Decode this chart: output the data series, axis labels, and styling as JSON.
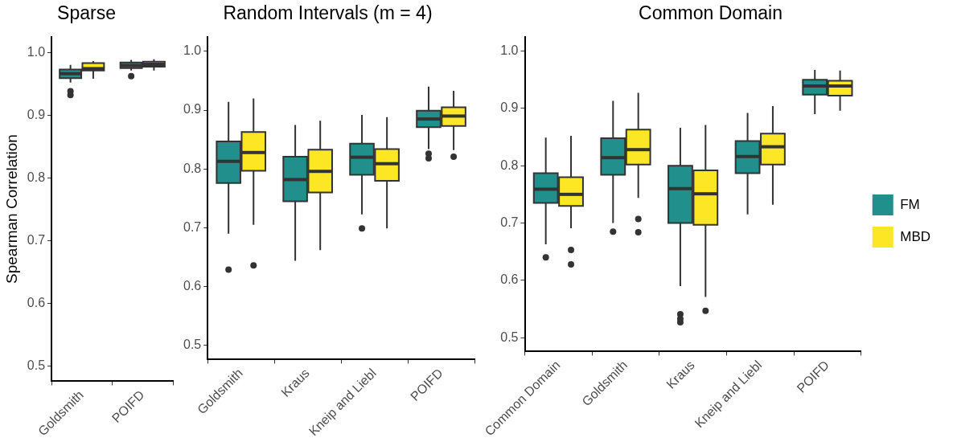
{
  "chart_data": [
    {
      "type": "box",
      "title": "Sparse",
      "ylabel": "Spearman Correlation",
      "categories": [
        "Goldsmith",
        "POIFD"
      ],
      "ylim": [
        0.476,
        1.025
      ],
      "yticks": [
        {
          "value": 0.5,
          "label": "0.5"
        },
        {
          "value": 0.6,
          "label": "0.6"
        },
        {
          "value": 0.7,
          "label": "0.7"
        },
        {
          "value": 0.8,
          "label": "0.8"
        },
        {
          "value": 0.9,
          "label": "0.9"
        },
        {
          "value": 1.0,
          "label": "1.0"
        }
      ],
      "legend": false,
      "series": [
        {
          "color": "#21908c",
          "boxes": [
            {
              "low": 0.952,
              "q1": 0.959,
              "median": 0.966,
              "q3": 0.9725,
              "high": 0.98,
              "outliers": [
                0.938,
                0.932
              ]
            },
            {
              "low": 0.971,
              "q1": 0.975,
              "median": 0.979,
              "q3": 0.984,
              "high": 0.988,
              "outliers": [
                0.962
              ]
            }
          ]
        },
        {
          "color": "#fde725",
          "boxes": [
            {
              "low": 0.958,
              "q1": 0.971,
              "median": 0.974,
              "q3": 0.983,
              "high": 0.986
            },
            {
              "low": 0.971,
              "q1": 0.977,
              "median": 0.981,
              "q3": 0.985,
              "high": 0.989
            }
          ]
        }
      ]
    },
    {
      "type": "box",
      "title": "Random Intervals (m = 4)",
      "categories": [
        "Goldsmith",
        "Kraus",
        "Kneip and Liebl",
        "POIFD"
      ],
      "ylim": [
        0.476,
        1.025
      ],
      "yticks": [
        {
          "value": 0.5,
          "label": "0.5"
        },
        {
          "value": 0.6,
          "label": "0.6"
        },
        {
          "value": 0.7,
          "label": "0.7"
        },
        {
          "value": 0.8,
          "label": "0.8"
        },
        {
          "value": 0.9,
          "label": "0.9"
        },
        {
          "value": 1.0,
          "label": "1.0"
        }
      ],
      "legend": false,
      "series": [
        {
          "color": "#21908c",
          "boxes": [
            {
              "low": 0.69,
              "q1": 0.776,
              "median": 0.813,
              "q3": 0.847,
              "high": 0.914,
              "outliers": [
                0.629
              ]
            },
            {
              "low": 0.644,
              "q1": 0.745,
              "median": 0.782,
              "q3": 0.821,
              "high": 0.875
            },
            {
              "low": 0.723,
              "q1": 0.79,
              "median": 0.82,
              "q3": 0.843,
              "high": 0.892,
              "outliers": [
                0.699
              ]
            },
            {
              "low": 0.834,
              "q1": 0.871,
              "median": 0.885,
              "q3": 0.899,
              "high": 0.94,
              "outliers": [
                0.826,
                0.818
              ]
            }
          ]
        },
        {
          "color": "#fde725",
          "boxes": [
            {
              "low": 0.705,
              "q1": 0.797,
              "median": 0.828,
              "q3": 0.863,
              "high": 0.92,
              "outliers": [
                0.636
              ]
            },
            {
              "low": 0.662,
              "q1": 0.76,
              "median": 0.796,
              "q3": 0.833,
              "high": 0.882
            },
            {
              "low": 0.699,
              "q1": 0.78,
              "median": 0.809,
              "q3": 0.834,
              "high": 0.888
            },
            {
              "low": 0.832,
              "q1": 0.873,
              "median": 0.89,
              "q3": 0.905,
              "high": 0.933,
              "outliers": [
                0.821
              ]
            }
          ]
        }
      ]
    },
    {
      "type": "box",
      "title": "Common Domain",
      "categories": [
        "Common Domain",
        "Goldsmith",
        "Kraus",
        "Kneip and Liebl",
        "POIFD"
      ],
      "ylim": [
        0.476,
        1.025
      ],
      "yticks": [
        {
          "value": 0.5,
          "label": "0.5"
        },
        {
          "value": 0.6,
          "label": "0.6"
        },
        {
          "value": 0.7,
          "label": "0.7"
        },
        {
          "value": 0.8,
          "label": "0.8"
        },
        {
          "value": 0.9,
          "label": "0.9"
        },
        {
          "value": 1.0,
          "label": "1.0"
        }
      ],
      "legend": "right",
      "series": [
        {
          "name": "FM",
          "color": "#21908c",
          "boxes": [
            {
              "low": 0.663,
              "q1": 0.735,
              "median": 0.759,
              "q3": 0.787,
              "high": 0.849,
              "outliers": [
                0.64
              ]
            },
            {
              "low": 0.7,
              "q1": 0.784,
              "median": 0.814,
              "q3": 0.848,
              "high": 0.913,
              "outliers": [
                0.685
              ]
            },
            {
              "low": 0.59,
              "q1": 0.7,
              "median": 0.76,
              "q3": 0.8,
              "high": 0.866,
              "outliers": [
                0.541,
                0.533,
                0.527
              ]
            },
            {
              "low": 0.715,
              "q1": 0.787,
              "median": 0.816,
              "q3": 0.843,
              "high": 0.892
            },
            {
              "low": 0.89,
              "q1": 0.924,
              "median": 0.939,
              "q3": 0.95,
              "high": 0.967
            }
          ]
        },
        {
          "name": "MBD",
          "color": "#fde725",
          "boxes": [
            {
              "low": 0.691,
              "q1": 0.73,
              "median": 0.75,
              "q3": 0.78,
              "high": 0.852,
              "outliers": [
                0.653,
                0.628
              ]
            },
            {
              "low": 0.744,
              "q1": 0.802,
              "median": 0.828,
              "q3": 0.863,
              "high": 0.927,
              "outliers": [
                0.707,
                0.684
              ]
            },
            {
              "low": 0.571,
              "q1": 0.697,
              "median": 0.751,
              "q3": 0.792,
              "high": 0.871,
              "outliers": [
                0.547
              ]
            },
            {
              "low": 0.732,
              "q1": 0.802,
              "median": 0.833,
              "q3": 0.856,
              "high": 0.904
            },
            {
              "low": 0.896,
              "q1": 0.922,
              "median": 0.939,
              "q3": 0.948,
              "high": 0.966
            }
          ]
        }
      ]
    }
  ]
}
